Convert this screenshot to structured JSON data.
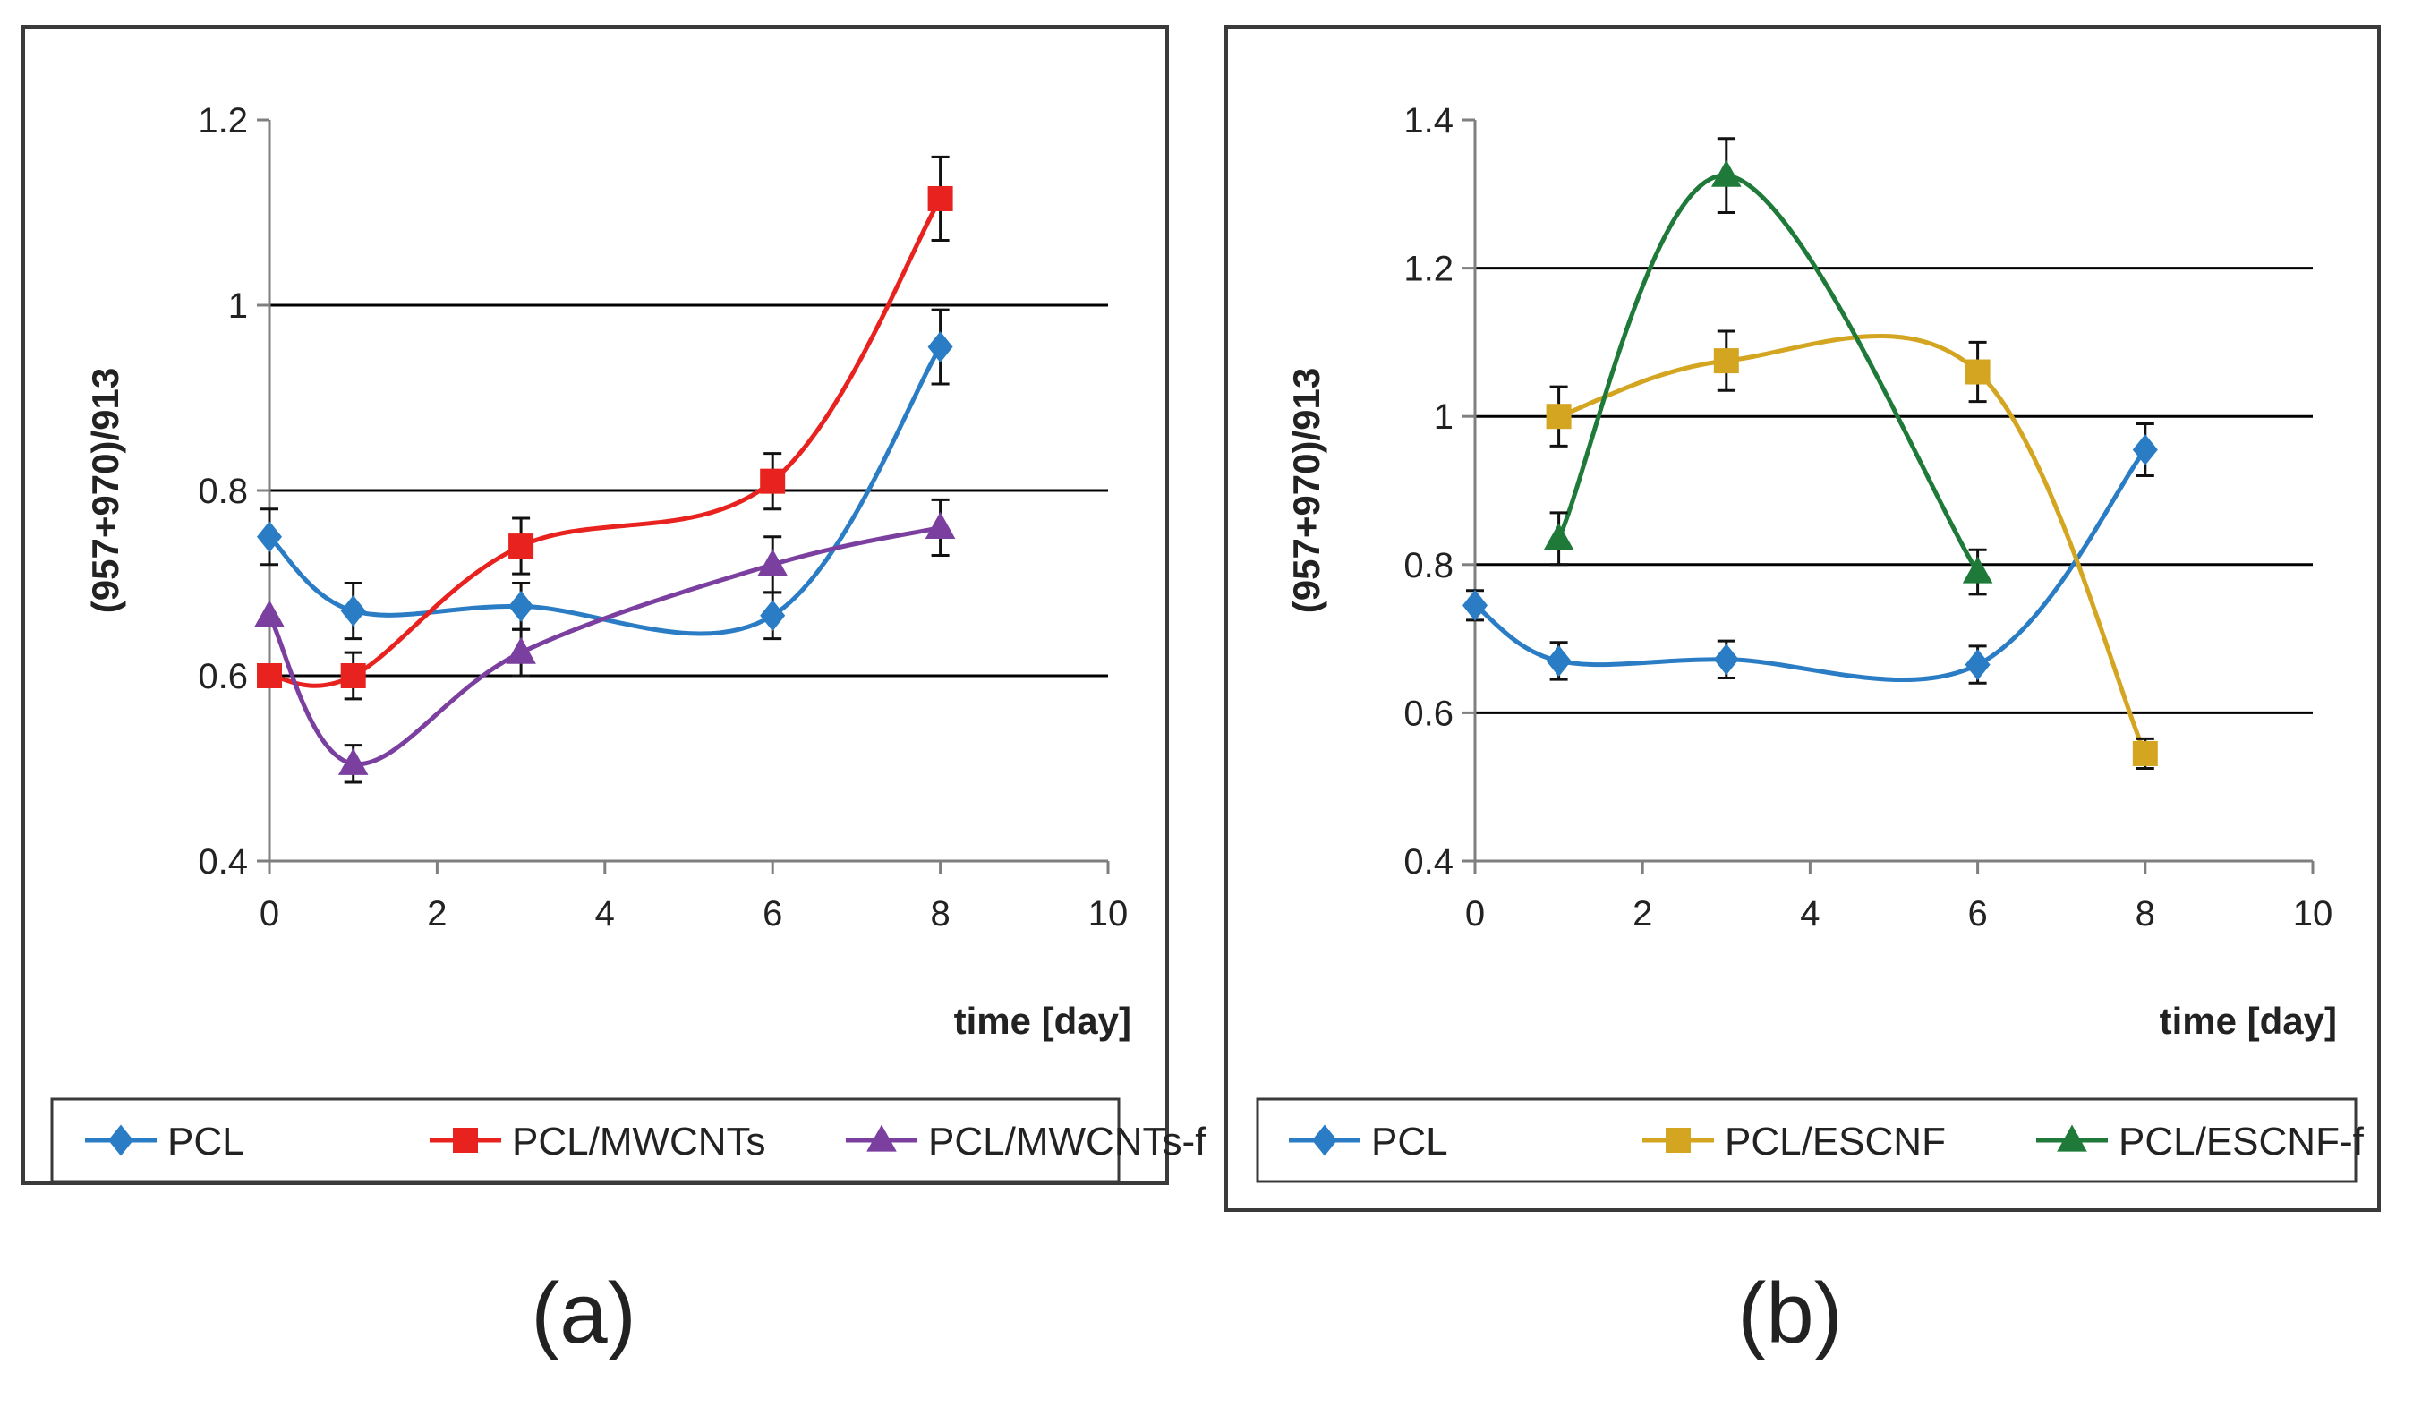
{
  "chart_data": [
    {
      "type": "line",
      "panel": "(a)",
      "xlabel": "time [day]",
      "ylabel": "(957+970)/913",
      "xlim": [
        0,
        10
      ],
      "ylim": [
        0.4,
        1.2
      ],
      "x_ticks": [
        0,
        2,
        4,
        6,
        8,
        10
      ],
      "x_tick_labels": [
        "0",
        "2",
        "4",
        "6",
        "8",
        "10"
      ],
      "y_ticks": [
        0.4,
        0.6,
        0.8,
        1.0,
        1.2
      ],
      "y_tick_labels": [
        "0.4",
        "0.6",
        "0.8",
        "1",
        "1.2"
      ],
      "gridlines_y": [
        0.6,
        0.8,
        1.0
      ],
      "legend_position": "bottom",
      "series": [
        {
          "name": "PCL",
          "color": "#2a7dc4",
          "marker": "diamond",
          "x": [
            0,
            1,
            3,
            6,
            8
          ],
          "y": [
            0.75,
            0.67,
            0.675,
            0.665,
            0.955
          ],
          "err": [
            0.03,
            0.03,
            0.025,
            0.025,
            0.04
          ]
        },
        {
          "name": "PCL/MWCNTs",
          "color": "#e8231f",
          "marker": "square",
          "x": [
            0,
            1,
            3,
            6,
            8
          ],
          "y": [
            0.6,
            0.6,
            0.74,
            0.81,
            1.115
          ],
          "err": [
            0.0,
            0.025,
            0.03,
            0.03,
            0.045
          ]
        },
        {
          "name": "PCL/MWCNTs-f",
          "color": "#7b3fa0",
          "marker": "triangle",
          "x": [
            0,
            1,
            3,
            6,
            8
          ],
          "y": [
            0.665,
            0.505,
            0.625,
            0.72,
            0.76
          ],
          "err": [
            0.0,
            0.02,
            0.025,
            0.03,
            0.03
          ]
        }
      ]
    },
    {
      "type": "line",
      "panel": "(b)",
      "xlabel": "time [day]",
      "ylabel": "(957+970)/913",
      "xlim": [
        0,
        10
      ],
      "ylim": [
        0.4,
        1.4
      ],
      "x_ticks": [
        0,
        2,
        4,
        6,
        8,
        10
      ],
      "x_tick_labels": [
        "0",
        "2",
        "4",
        "6",
        "8",
        "10"
      ],
      "y_ticks": [
        0.4,
        0.6,
        0.8,
        1.0,
        1.2,
        1.4
      ],
      "y_tick_labels": [
        "0.4",
        "0.6",
        "0.8",
        "1",
        "1.2",
        "1.4"
      ],
      "gridlines_y": [
        0.6,
        0.8,
        1.0,
        1.2
      ],
      "legend_position": "bottom",
      "series": [
        {
          "name": "PCL",
          "color": "#2a7dc4",
          "marker": "diamond",
          "x": [
            0,
            1,
            3,
            6,
            8
          ],
          "y": [
            0.745,
            0.67,
            0.672,
            0.665,
            0.955
          ],
          "err": [
            0.02,
            0.025,
            0.025,
            0.025,
            0.035
          ]
        },
        {
          "name": "PCL/ESCNF",
          "color": "#d4a520",
          "marker": "square",
          "x": [
            1,
            3,
            6,
            8
          ],
          "y": [
            1.0,
            1.075,
            1.06,
            0.545
          ],
          "err": [
            0.04,
            0.04,
            0.04,
            0.02
          ]
        },
        {
          "name": "PCL/ESCNF-f",
          "color": "#1f7a3a",
          "marker": "triangle",
          "x": [
            1,
            3,
            6
          ],
          "y": [
            0.835,
            1.325,
            0.79
          ],
          "err": [
            0.035,
            0.05,
            0.03
          ]
        }
      ]
    }
  ]
}
